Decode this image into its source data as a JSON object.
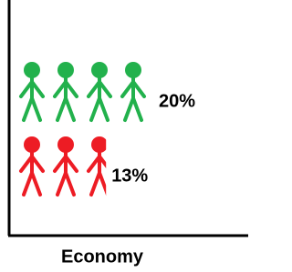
{
  "chart_data": {
    "type": "pictograph",
    "xlabel": "Economy",
    "values": [
      20,
      13
    ],
    "value_labels": [
      "20%",
      "13%"
    ],
    "colors": [
      "#22b14c",
      "#ed1c24"
    ]
  }
}
